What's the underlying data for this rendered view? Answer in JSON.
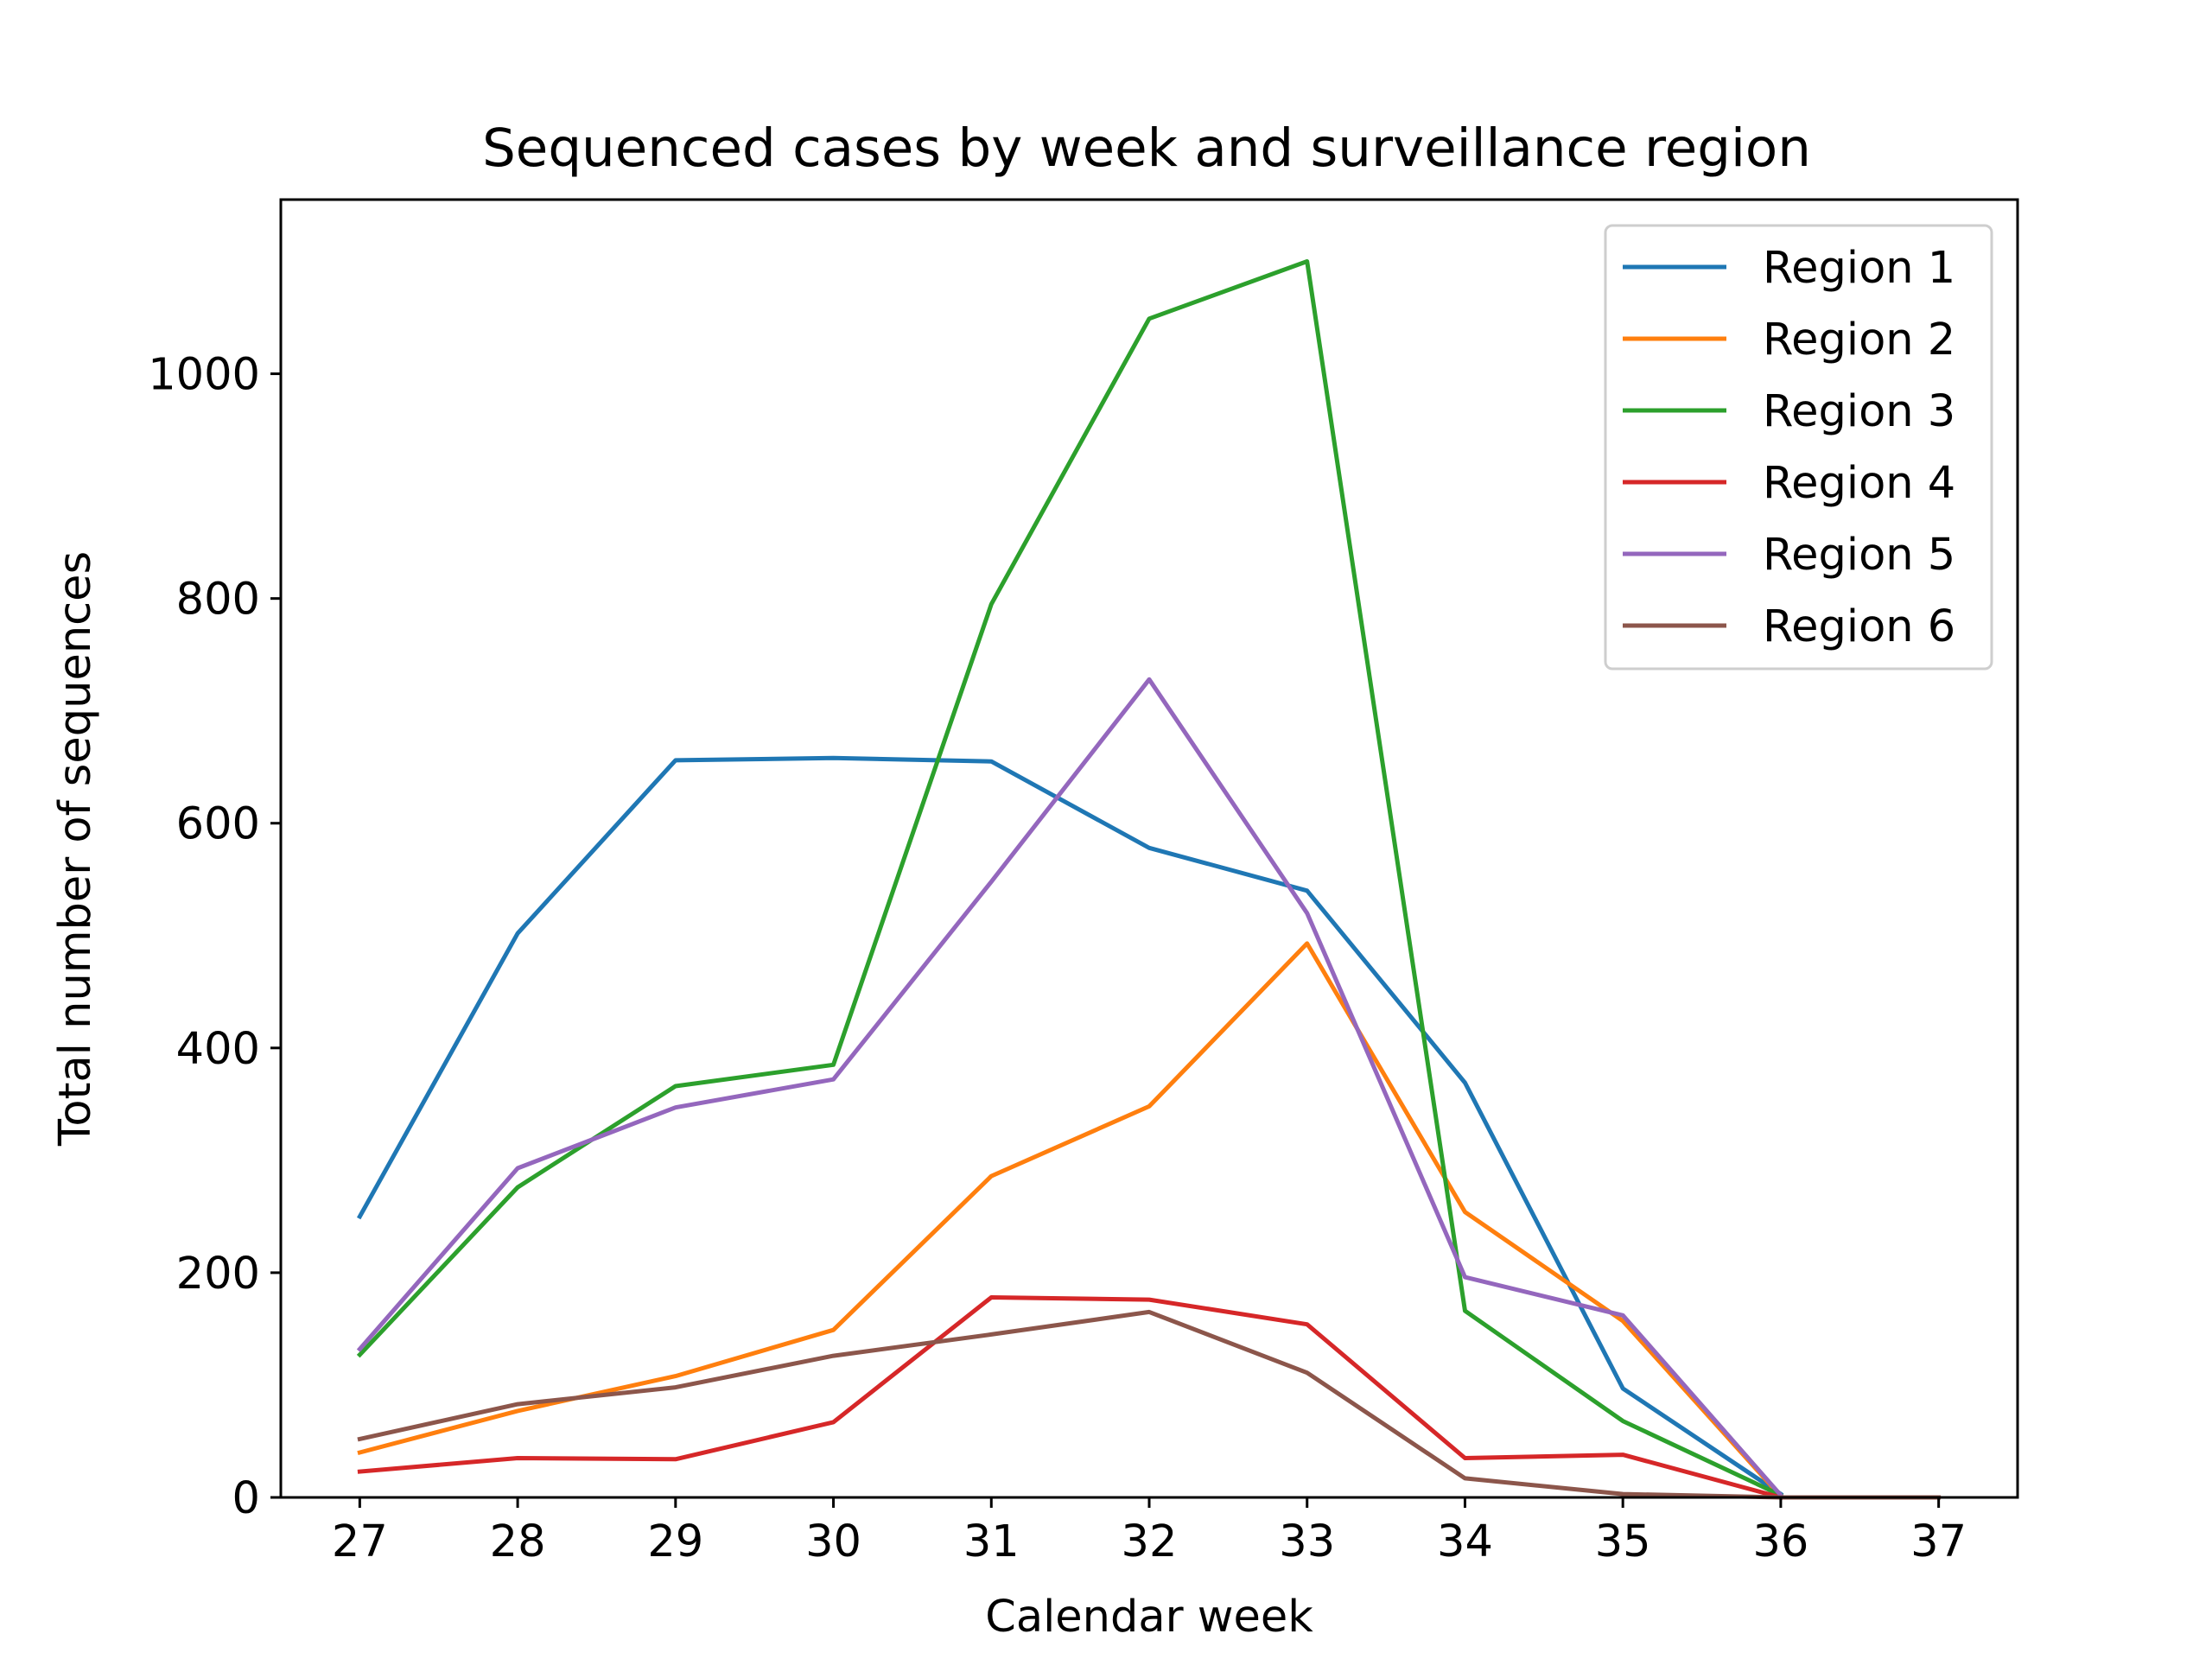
{
  "chart_data": {
    "type": "line",
    "title": "Sequenced cases by week and surveillance region",
    "xlabel": "Calendar week",
    "ylabel": "Total number of sequences",
    "x": [
      27,
      28,
      29,
      30,
      31,
      32,
      33,
      34,
      35,
      36,
      37
    ],
    "xlim": [
      26.5,
      37.5
    ],
    "ylim": [
      0,
      1155
    ],
    "xticks": [
      27,
      28,
      29,
      30,
      31,
      32,
      33,
      34,
      35,
      36,
      37
    ],
    "xtick_labels": [
      "27",
      "28",
      "29",
      "30",
      "31",
      "32",
      "33",
      "34",
      "35",
      "36",
      "37"
    ],
    "yticks": [
      0,
      200,
      400,
      600,
      800,
      1000
    ],
    "ytick_labels": [
      "0",
      "200",
      "400",
      "600",
      "800",
      "1000"
    ],
    "grid": false,
    "legend_position": "top-right",
    "series": [
      {
        "name": "Region 1",
        "color": "#1f77b4",
        "values": [
          250,
          502,
          656,
          658,
          655,
          578,
          540,
          369,
          97,
          3,
          null
        ]
      },
      {
        "name": "Region 2",
        "color": "#ff7f0e",
        "values": [
          40,
          77,
          108,
          149,
          286,
          348,
          493,
          254,
          157,
          1,
          null
        ]
      },
      {
        "name": "Region 3",
        "color": "#2ca02c",
        "values": [
          127,
          276,
          366,
          385,
          795,
          1049,
          1100,
          166,
          68,
          2,
          null
        ]
      },
      {
        "name": "Region 4",
        "color": "#d62728",
        "values": [
          23,
          35,
          34,
          67,
          178,
          176,
          154,
          35,
          38,
          0,
          null
        ]
      },
      {
        "name": "Region 5",
        "color": "#9467bd",
        "values": [
          132,
          293,
          347,
          372,
          548,
          728,
          520,
          196,
          162,
          2,
          null
        ]
      },
      {
        "name": "Region 6",
        "color": "#8c564b",
        "values": [
          52,
          83,
          98,
          126,
          145,
          165,
          111,
          17,
          3,
          0,
          0
        ]
      }
    ]
  }
}
